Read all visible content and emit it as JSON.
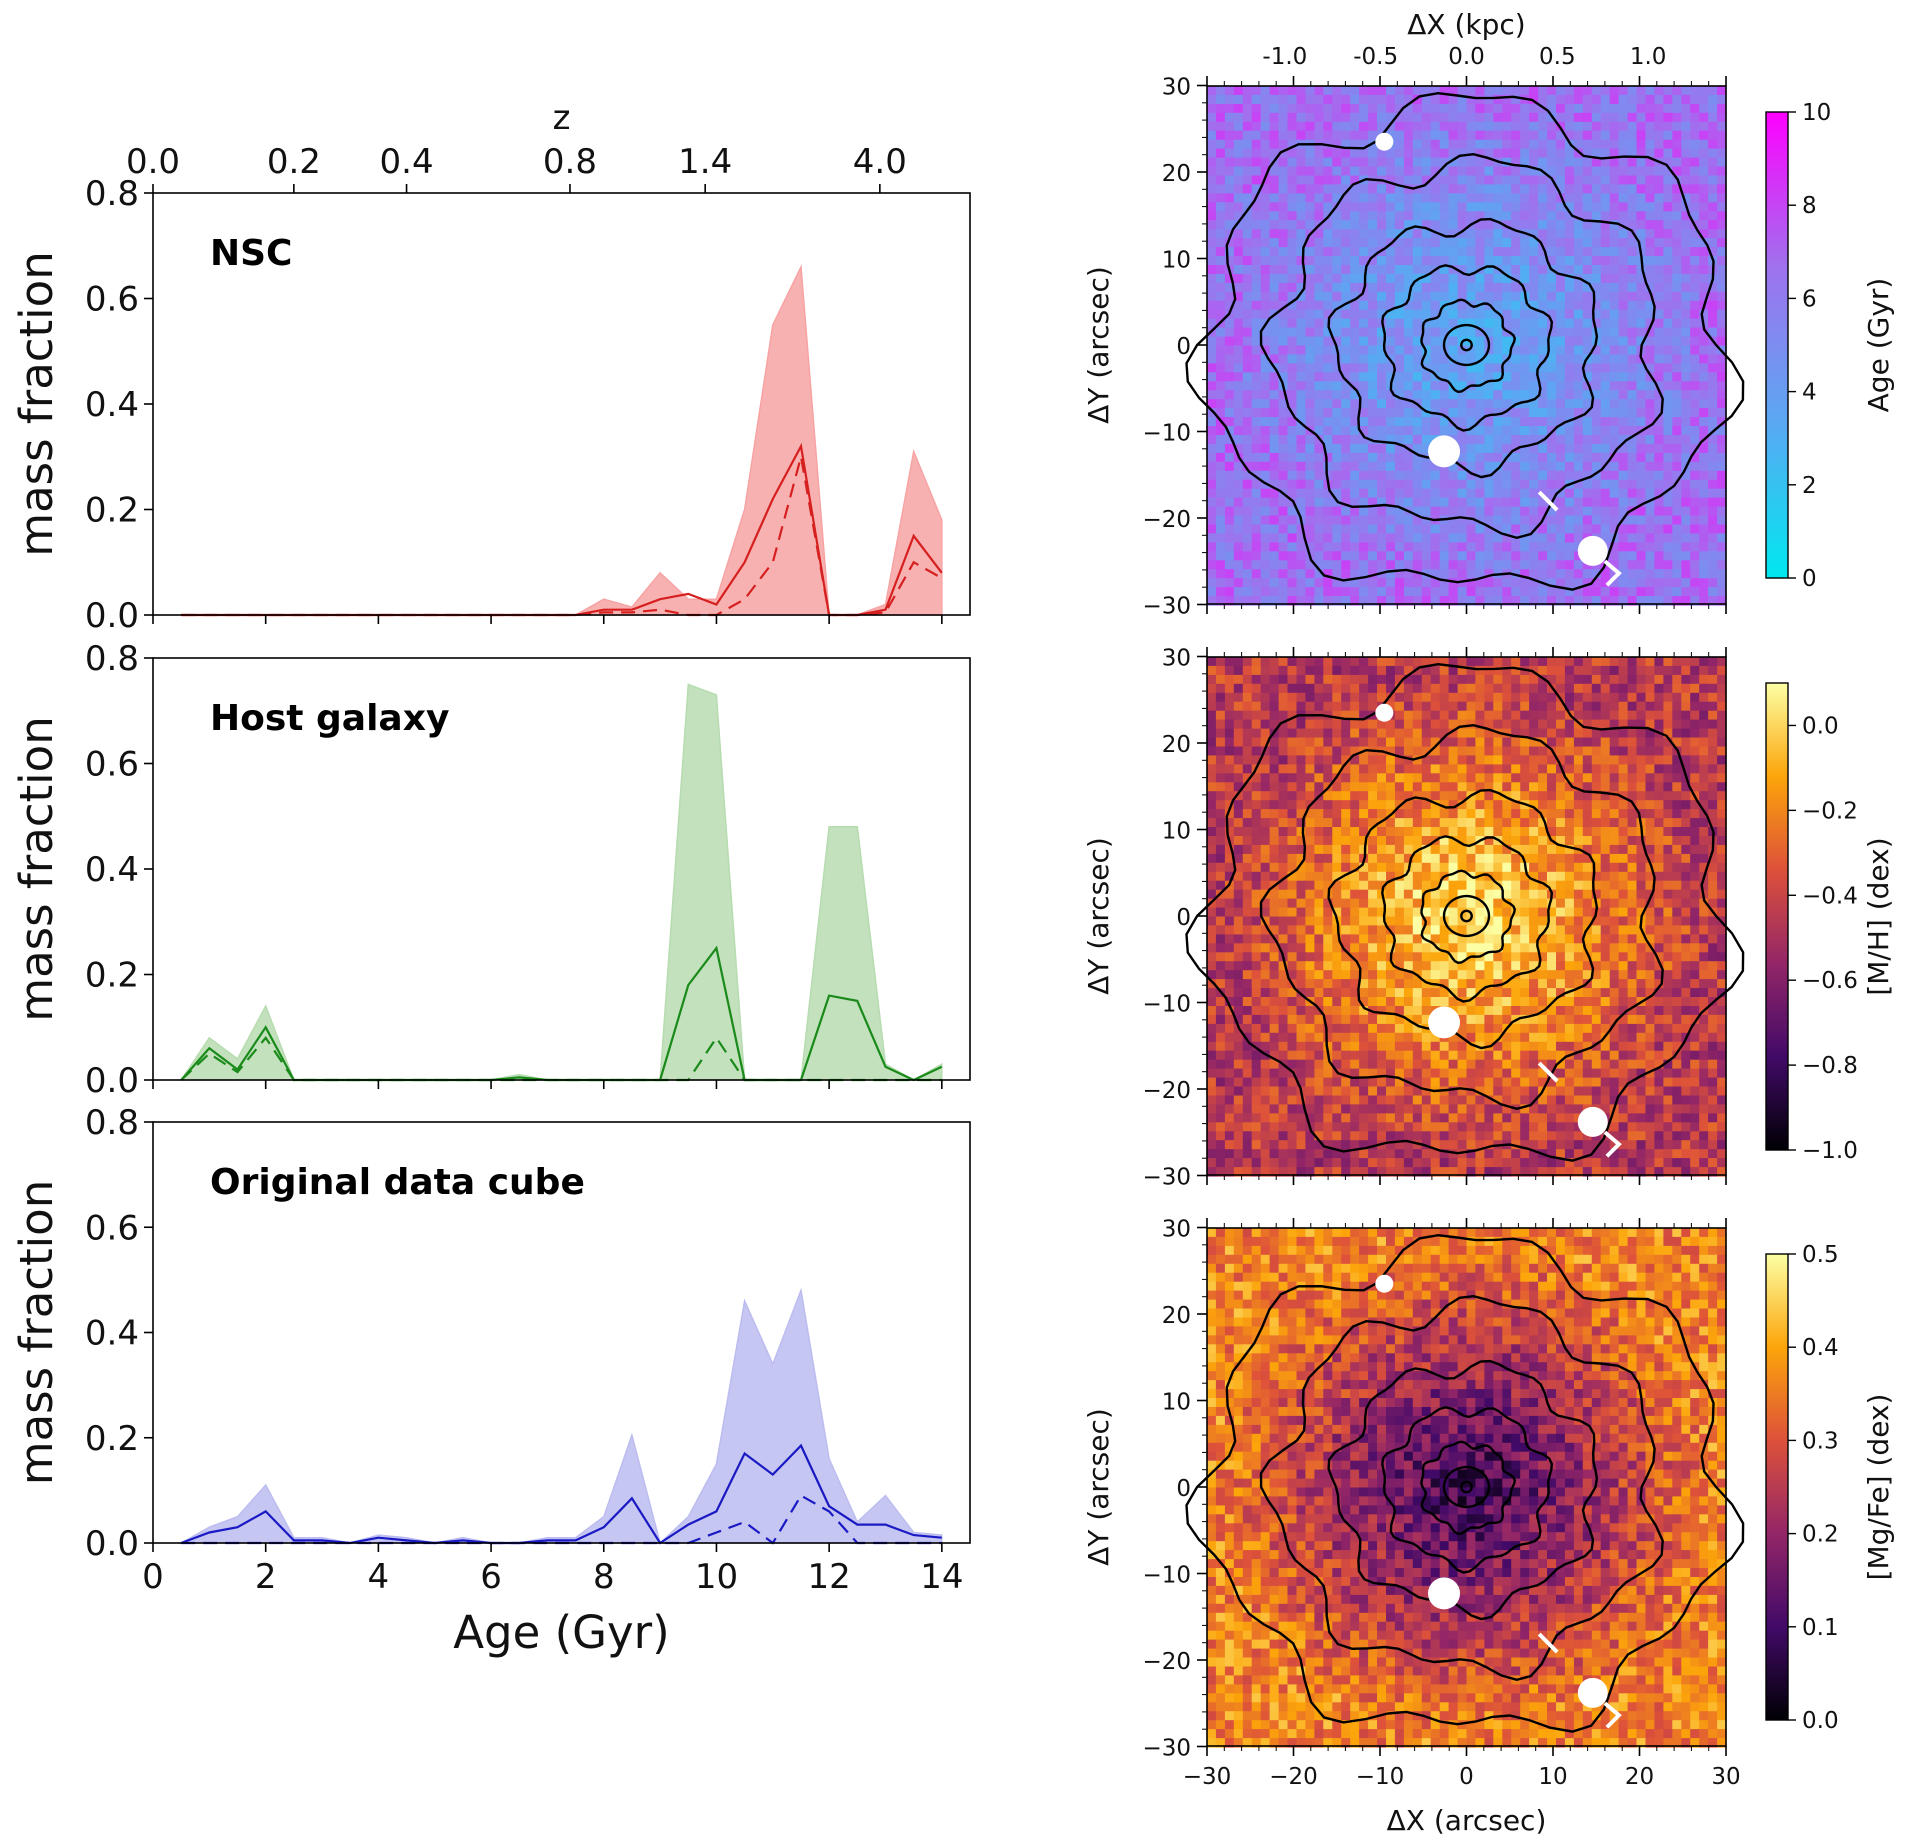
{
  "chart_data": [
    {
      "type": "area",
      "panel_label": "NSC",
      "color": "#d62020",
      "fill": "#f7a3a3",
      "ylabel": "mass fraction",
      "xlim": [
        0,
        14.5
      ],
      "ylim": [
        0,
        0.8
      ],
      "yticks": [
        "0.0",
        "0.2",
        "0.4",
        "0.6",
        "0.8"
      ],
      "top_axis": {
        "label": "z",
        "ticks": [
          {
            "age": 0.0,
            "label": "0.0"
          },
          {
            "age": 2.5,
            "label": "0.2"
          },
          {
            "age": 4.5,
            "label": "0.4"
          },
          {
            "age": 7.4,
            "label": "0.8"
          },
          {
            "age": 9.8,
            "label": "1.4"
          },
          {
            "age": 12.9,
            "label": "4.0"
          }
        ]
      },
      "x": [
        0.5,
        1,
        1.5,
        2,
        2.5,
        3,
        3.5,
        4,
        4.5,
        5,
        5.5,
        6,
        6.5,
        7,
        7.5,
        8,
        8.5,
        9,
        9.5,
        10,
        10.5,
        11,
        11.5,
        12,
        12.5,
        13,
        13.5,
        14
      ],
      "series": [
        {
          "style": "solid",
          "values": [
            0,
            0,
            0,
            0,
            0,
            0,
            0,
            0,
            0,
            0,
            0,
            0,
            0,
            0,
            0,
            0.01,
            0.01,
            0.03,
            0.04,
            0.02,
            0.1,
            0.22,
            0.32,
            0,
            0,
            0.01,
            0.15,
            0.08
          ]
        },
        {
          "style": "dashed",
          "values": [
            0,
            0,
            0,
            0,
            0,
            0,
            0,
            0,
            0,
            0,
            0,
            0,
            0,
            0,
            0,
            0.005,
            0.005,
            0.01,
            0,
            0,
            0.03,
            0.1,
            0.3,
            0,
            0,
            0.005,
            0.1,
            0.07
          ]
        }
      ],
      "band_upper": [
        0,
        0,
        0,
        0,
        0,
        0,
        0,
        0,
        0,
        0,
        0,
        0,
        0,
        0,
        0,
        0.03,
        0.015,
        0.08,
        0.03,
        0.03,
        0.2,
        0.55,
        0.66,
        0,
        0,
        0.02,
        0.31,
        0.18
      ]
    },
    {
      "type": "area",
      "panel_label": "Host galaxy",
      "color": "#1a8a1a",
      "fill": "#b7dcb0",
      "ylabel": "mass fraction",
      "xlim": [
        0,
        14.5
      ],
      "ylim": [
        0,
        0.8
      ],
      "yticks": [
        "0.0",
        "0.2",
        "0.4",
        "0.6",
        "0.8"
      ],
      "x": [
        0.5,
        1,
        1.5,
        2,
        2.5,
        3,
        3.5,
        4,
        4.5,
        5,
        5.5,
        6,
        6.5,
        7,
        7.5,
        8,
        8.5,
        9,
        9.5,
        10,
        10.5,
        11,
        11.5,
        12,
        12.5,
        13,
        13.5,
        14
      ],
      "series": [
        {
          "style": "solid",
          "values": [
            0,
            0.06,
            0.02,
            0.1,
            0,
            0,
            0,
            0,
            0,
            0,
            0,
            0,
            0.005,
            0,
            0,
            0,
            0,
            0,
            0.18,
            0.25,
            0,
            0,
            0,
            0.16,
            0.15,
            0.025,
            0,
            0.025
          ]
        },
        {
          "style": "dashed",
          "values": [
            0,
            0.05,
            0.015,
            0.08,
            0,
            0,
            0,
            0,
            0,
            0,
            0,
            0,
            0,
            0,
            0,
            0,
            0,
            0,
            0,
            0.08,
            0,
            0,
            0,
            0,
            0,
            0,
            0,
            0
          ]
        }
      ],
      "band_upper": [
        0,
        0.08,
        0.04,
        0.14,
        0,
        0,
        0,
        0,
        0,
        0,
        0,
        0,
        0.01,
        0,
        0,
        0,
        0,
        0,
        0.75,
        0.73,
        0,
        0,
        0,
        0.48,
        0.48,
        0.03,
        0,
        0.03
      ]
    },
    {
      "type": "area",
      "panel_label": "Original data cube",
      "color": "#1a1ac4",
      "fill": "#bcbcf0",
      "ylabel": "mass fraction",
      "xlabel": "Age (Gyr)",
      "xlim": [
        0,
        14.5
      ],
      "ylim": [
        0,
        0.8
      ],
      "yticks": [
        "0.0",
        "0.2",
        "0.4",
        "0.6",
        "0.8"
      ],
      "xticks": [
        "0",
        "2",
        "4",
        "6",
        "8",
        "10",
        "12",
        "14"
      ],
      "x": [
        0.5,
        1,
        1.5,
        2,
        2.5,
        3,
        3.5,
        4,
        4.5,
        5,
        5.5,
        6,
        6.5,
        7,
        7.5,
        8,
        8.5,
        9,
        9.5,
        10,
        10.5,
        11,
        11.5,
        12,
        12.5,
        13,
        13.5,
        14
      ],
      "series": [
        {
          "style": "solid",
          "values": [
            0,
            0.02,
            0.03,
            0.06,
            0.005,
            0.005,
            0,
            0.01,
            0.005,
            0,
            0.005,
            0,
            0,
            0.005,
            0.005,
            0.03,
            0.085,
            0,
            0.035,
            0.06,
            0.17,
            0.13,
            0.185,
            0.07,
            0.035,
            0.035,
            0.015,
            0.01
          ]
        },
        {
          "style": "dashed",
          "values": [
            0,
            0,
            0,
            0,
            0,
            0,
            0,
            0,
            0,
            0,
            0,
            0,
            0,
            0,
            0,
            0,
            0,
            0,
            0,
            0.02,
            0.04,
            0,
            0.09,
            0.06,
            0,
            0,
            0,
            0
          ]
        }
      ],
      "band_upper": [
        0,
        0.03,
        0.05,
        0.11,
        0.01,
        0.01,
        0,
        0.015,
        0.01,
        0,
        0.01,
        0,
        0,
        0.01,
        0.01,
        0.05,
        0.205,
        0,
        0.05,
        0.15,
        0.46,
        0.34,
        0.48,
        0.16,
        0.04,
        0.09,
        0.02,
        0.015
      ]
    },
    {
      "type": "heatmap",
      "quantity": "Age",
      "xlim": [
        -30,
        30
      ],
      "ylim": [
        -30,
        30
      ],
      "ylabel": "ΔY (arcsec)",
      "yticks": [
        "−30",
        "−20",
        "−10",
        "0",
        "10",
        "20",
        "30"
      ],
      "top_axis": {
        "label": "ΔX (kpc)",
        "ticks": [
          {
            "arcsec": -21,
            "label": "-1.0"
          },
          {
            "arcsec": -10.5,
            "label": "-0.5"
          },
          {
            "arcsec": 0,
            "label": "0.0"
          },
          {
            "arcsec": 10.5,
            "label": "0.5"
          },
          {
            "arcsec": 21,
            "label": "1.0"
          }
        ]
      },
      "colorbar": {
        "label": "Age (Gyr)",
        "range": [
          0,
          10
        ],
        "ticks": [
          "0",
          "2",
          "4",
          "6",
          "8",
          "10"
        ],
        "colors": [
          "#00e8f0",
          "#5aa8f2",
          "#9f72ee",
          "#ff00ff"
        ]
      },
      "trend": "rises outward",
      "center_value": 3.5,
      "edge_value": 6.5
    },
    {
      "type": "heatmap",
      "quantity": "[M/H]",
      "xlim": [
        -30,
        30
      ],
      "ylim": [
        -30,
        30
      ],
      "ylabel": "ΔY (arcsec)",
      "yticks": [
        "−30",
        "−20",
        "−10",
        "0",
        "10",
        "20",
        "30"
      ],
      "colorbar": {
        "label": "[M/H] (dex)",
        "range": [
          -1.0,
          0.1
        ],
        "ticks": [
          "−1.0",
          "−0.8",
          "−0.6",
          "−0.4",
          "−0.2",
          "0.0"
        ],
        "colors": [
          "#000004",
          "#420a68",
          "#932667",
          "#dd513a",
          "#fca50a",
          "#fcffa4"
        ]
      },
      "trend": "falls outward",
      "center_value": 0.05,
      "edge_value": -0.45
    },
    {
      "type": "heatmap",
      "quantity": "[Mg/Fe]",
      "xlim": [
        -30,
        30
      ],
      "ylim": [
        -30,
        30
      ],
      "ylabel": "ΔY (arcsec)",
      "xlabel": "ΔX (arcsec)",
      "yticks": [
        "−30",
        "−20",
        "−10",
        "0",
        "10",
        "20",
        "30"
      ],
      "xticks": [
        "−30",
        "−20",
        "−10",
        "0",
        "10",
        "20",
        "30"
      ],
      "colorbar": {
        "label": "[Mg/Fe] (dex)",
        "range": [
          0,
          0.5
        ],
        "ticks": [
          "0.0",
          "0.1",
          "0.2",
          "0.3",
          "0.4",
          "0.5"
        ],
        "colors": [
          "#000004",
          "#420a68",
          "#932667",
          "#dd513a",
          "#fca50a",
          "#fcffa4"
        ]
      },
      "trend": "rises outward",
      "center_value": 0.08,
      "edge_value": 0.36
    }
  ]
}
